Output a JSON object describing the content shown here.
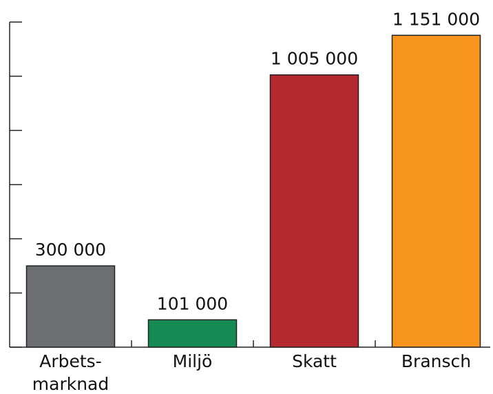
{
  "chart_data": {
    "type": "bar",
    "categories": [
      "Arbets-\nmarknad",
      "Miljö",
      "Skatt",
      "Bransch"
    ],
    "values": [
      300000,
      101000,
      1005000,
      1151000
    ],
    "value_labels": [
      "300 000",
      "101 000",
      "1 005 000",
      "1 151 000"
    ],
    "colors": [
      "#6d6e71",
      "#158a52",
      "#b5282f",
      "#f7941d"
    ],
    "ylim": [
      0,
      1200000
    ],
    "yticks": [
      0,
      200000,
      400000,
      600000,
      800000,
      1000000,
      1200000
    ],
    "grid": false
  }
}
